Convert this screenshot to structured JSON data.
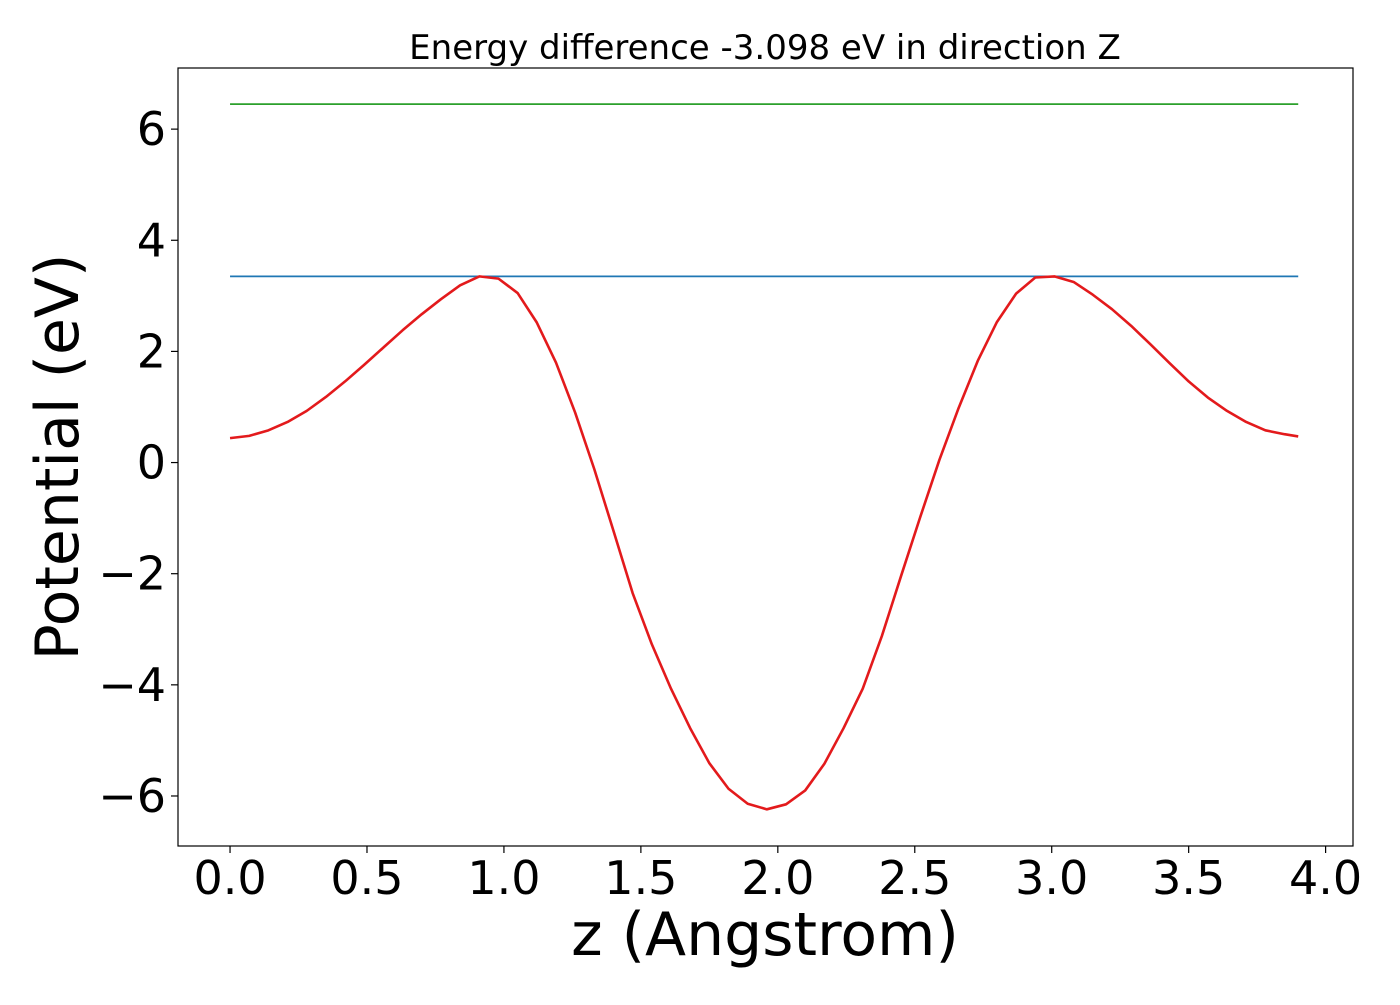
{
  "chart_data": {
    "type": "line",
    "title": "Energy difference -3.098 eV in direction Z",
    "xlabel": "z (Angstrom)",
    "ylabel": "Potential (eV)",
    "xlim": [
      -0.19,
      4.1
    ],
    "ylim": [
      -6.9,
      7.1
    ],
    "xticks": [
      0.0,
      0.5,
      1.0,
      1.5,
      2.0,
      2.5,
      3.0,
      3.5,
      4.0
    ],
    "xtick_labels": [
      "0.0",
      "0.5",
      "1.0",
      "1.5",
      "2.0",
      "2.5",
      "3.0",
      "3.5",
      "4.0"
    ],
    "yticks": [
      -6,
      -4,
      -2,
      0,
      2,
      4,
      6
    ],
    "ytick_labels": [
      "−6",
      "−4",
      "−2",
      "0",
      "2",
      "4",
      "6"
    ],
    "grid": false,
    "legend": "none",
    "series": [
      {
        "color": "#2ca02c",
        "x": [
          0.0,
          3.9
        ],
        "y": [
          6.45,
          6.45
        ]
      },
      {
        "color": "#1f77b4",
        "x": [
          0.0,
          3.9
        ],
        "y": [
          3.35,
          3.35
        ]
      },
      {
        "color": "#e31a1c",
        "x": [
          0.0,
          0.07,
          0.14,
          0.21,
          0.28,
          0.35,
          0.42,
          0.49,
          0.56,
          0.63,
          0.7,
          0.77,
          0.84,
          0.91,
          0.98,
          1.05,
          1.12,
          1.19,
          1.26,
          1.33,
          1.4,
          1.47,
          1.54,
          1.61,
          1.68,
          1.75,
          1.82,
          1.89,
          1.96,
          2.03,
          2.1,
          2.17,
          2.24,
          2.31,
          2.38,
          2.45,
          2.52,
          2.59,
          2.66,
          2.73,
          2.8,
          2.87,
          2.94,
          3.01,
          3.08,
          3.15,
          3.22,
          3.29,
          3.36,
          3.43,
          3.5,
          3.57,
          3.64,
          3.71,
          3.78,
          3.85,
          3.9
        ],
        "y": [
          0.44,
          0.48,
          0.58,
          0.73,
          0.93,
          1.18,
          1.46,
          1.76,
          2.07,
          2.38,
          2.67,
          2.94,
          3.19,
          3.35,
          3.31,
          3.05,
          2.52,
          1.8,
          0.9,
          -0.12,
          -1.23,
          -2.35,
          -3.27,
          -4.07,
          -4.78,
          -5.41,
          -5.87,
          -6.14,
          -6.24,
          -6.15,
          -5.9,
          -5.42,
          -4.78,
          -4.07,
          -3.12,
          -2.04,
          -0.98,
          0.05,
          0.98,
          1.83,
          2.53,
          3.04,
          3.33,
          3.35,
          3.25,
          3.02,
          2.76,
          2.46,
          2.13,
          1.79,
          1.46,
          1.17,
          0.93,
          0.73,
          0.58,
          0.51,
          0.47
        ]
      }
    ]
  }
}
